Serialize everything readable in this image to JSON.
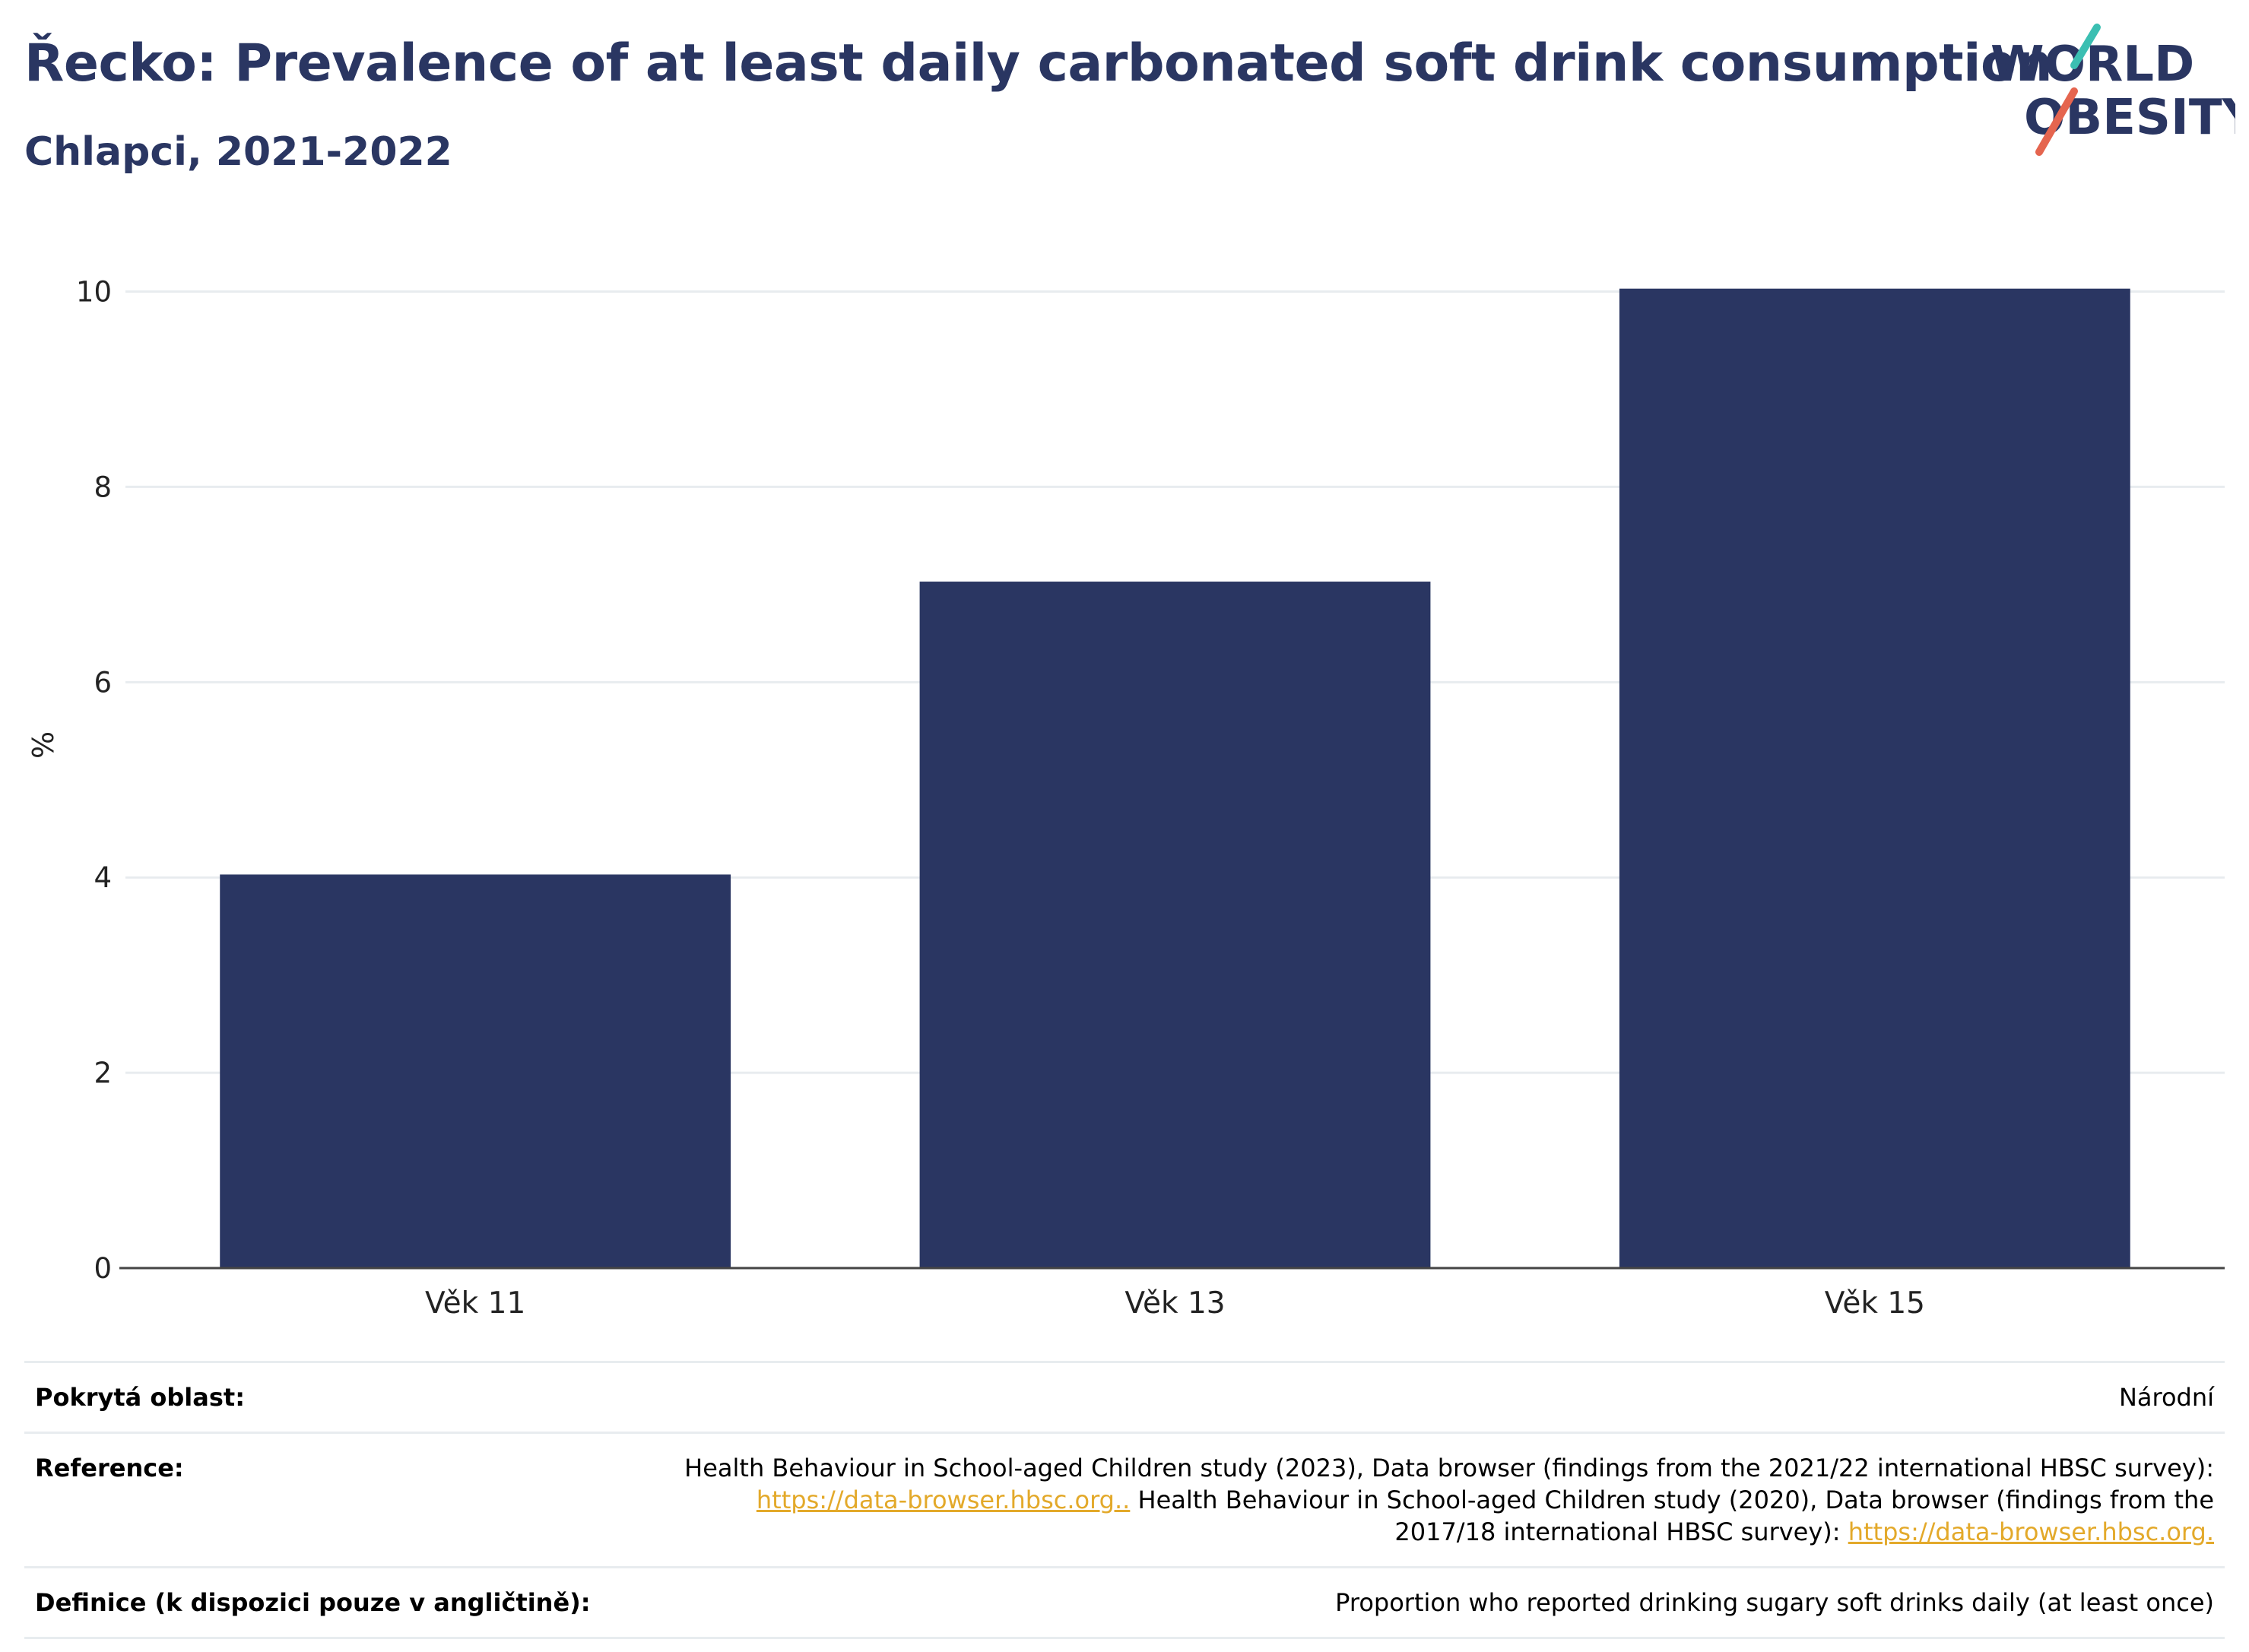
{
  "header": {
    "title": "Řecko: Prevalence of at least daily carbonated soft drink consumption",
    "subtitle": "Chlapci, 2021-2022"
  },
  "logo": {
    "line1": "WORLD",
    "line2": "OBESITY",
    "text_color": "#2a3662",
    "slash_teal": "#3bbfb2",
    "slash_red": "#e5654f"
  },
  "colors": {
    "bar": "#2a3662",
    "title": "#2a3662",
    "link": "#e3a92a",
    "grid": "#e8ecef"
  },
  "chart_data": {
    "type": "bar",
    "categories": [
      "Věk 11",
      "Věk 13",
      "Věk 15"
    ],
    "values": [
      4.03,
      7.03,
      10.03
    ],
    "ylabel": "%",
    "xlabel": "",
    "ylim": [
      0,
      10.3
    ],
    "yticks": [
      0,
      2,
      4,
      6,
      8,
      10
    ],
    "grid": true
  },
  "info": {
    "coverage_label": "Pokrytá oblast:",
    "coverage_value": "Národní",
    "reference_label": "Reference:",
    "reference_text1": "Health Behaviour in School-aged Children study (2023), Data browser (findings from the 2021/22 international HBSC survey):",
    "reference_link1": "https://data-browser.hbsc.org..",
    "reference_text2": " Health Behaviour in School-aged Children study (2020), Data browser (findings from the 2017/18 international HBSC survey): ",
    "reference_link2": "https://data-browser.hbsc.org.",
    "definition_label": "Definice (k dispozici pouze v angličtině):",
    "definition_value": "Proportion who reported drinking sugary soft drinks daily (at least once)"
  }
}
